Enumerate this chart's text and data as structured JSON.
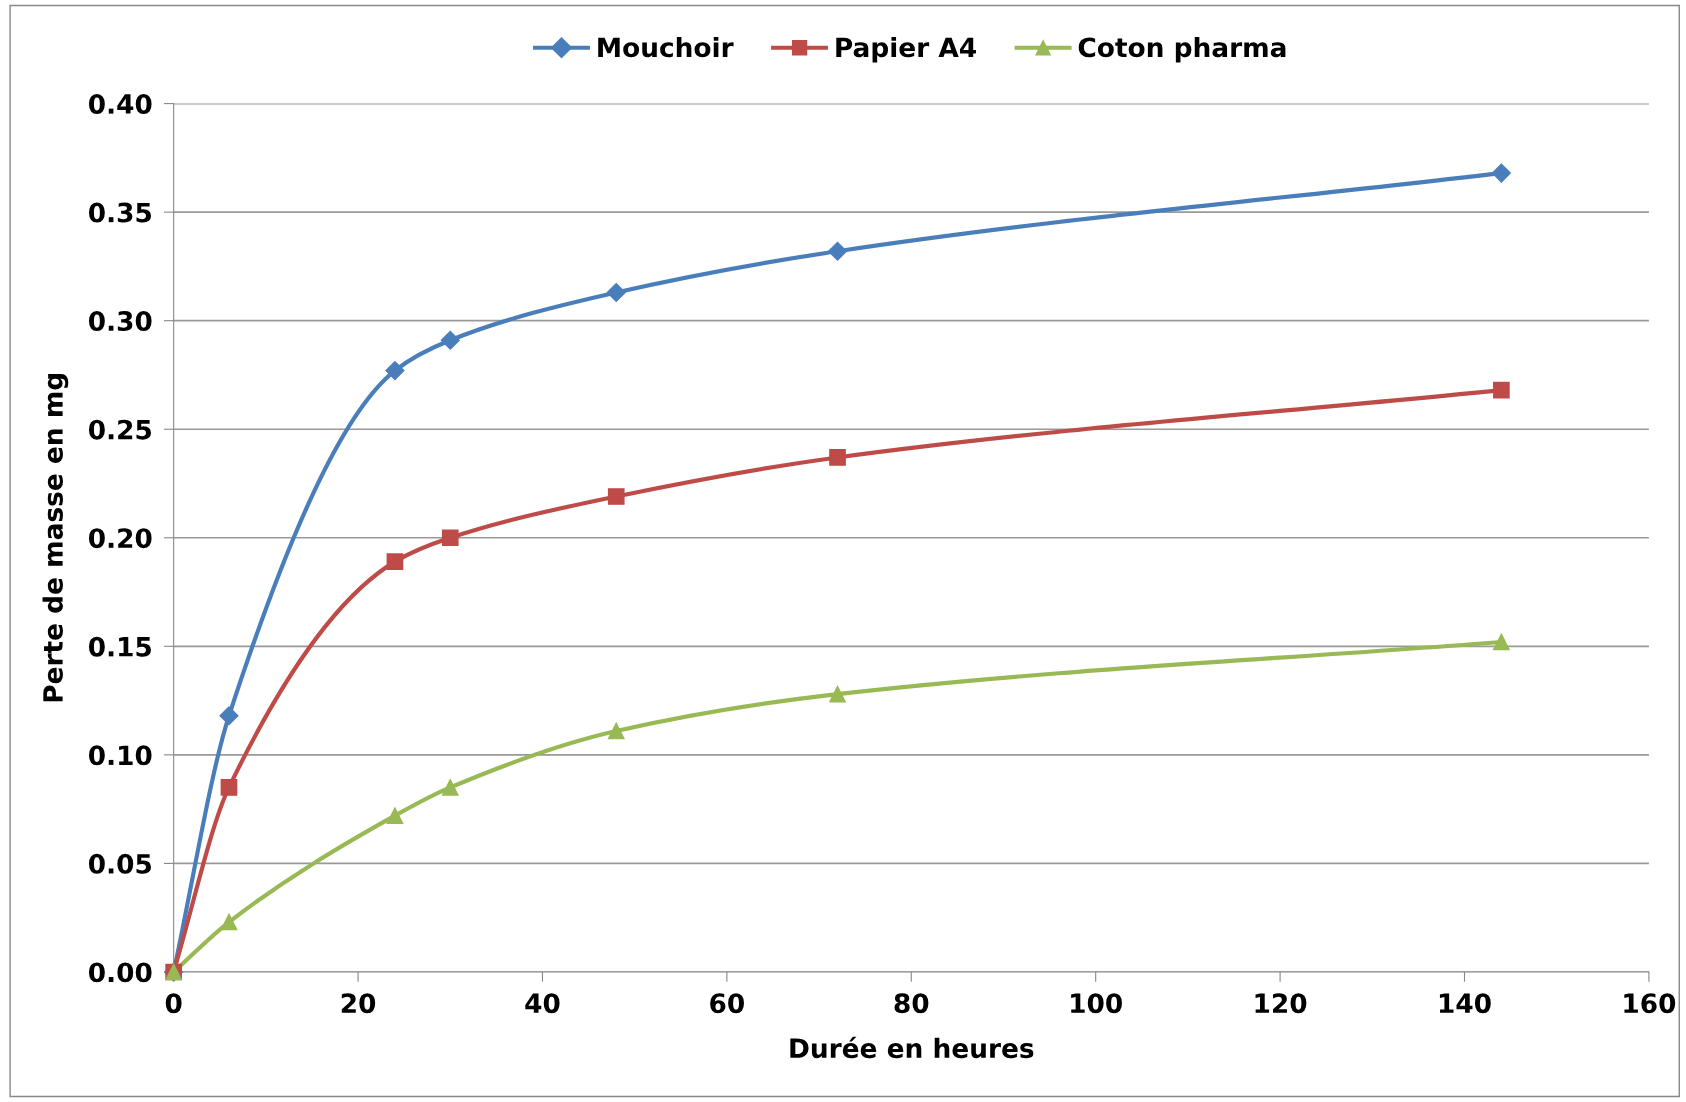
{
  "chart_data": {
    "type": "line",
    "xlabel": "Durée en heures",
    "ylabel": "Perte de masse en mg",
    "x": [
      0,
      6,
      24,
      30,
      48,
      72,
      144
    ],
    "series": [
      {
        "name": "Mouchoir",
        "color": "#4a7ebb",
        "marker": "diamond",
        "values": [
          0,
          0.118,
          0.277,
          0.291,
          0.313,
          0.332,
          0.368
        ]
      },
      {
        "name": "Papier A4",
        "color": "#be4b48",
        "marker": "square",
        "values": [
          0,
          0.085,
          0.189,
          0.2,
          0.219,
          0.237,
          0.268
        ]
      },
      {
        "name": "Coton pharma",
        "color": "#98b954",
        "marker": "triangle",
        "values": [
          0,
          0.023,
          0.072,
          0.085,
          0.111,
          0.128,
          0.152
        ]
      }
    ],
    "xlim": [
      0,
      160
    ],
    "xticks": [
      0,
      20,
      40,
      60,
      80,
      100,
      120,
      140,
      160
    ],
    "ylim": [
      0,
      0.4
    ],
    "yticks": [
      {
        "value": 0,
        "label": "0.00"
      },
      {
        "value": 0.05,
        "label": "0.05"
      },
      {
        "value": 0.1,
        "label": "0.10"
      },
      {
        "value": 0.15,
        "label": "0.15"
      },
      {
        "value": 0.2,
        "label": "0.20"
      },
      {
        "value": 0.25,
        "label": "0.25"
      },
      {
        "value": 0.3,
        "label": "0.30"
      },
      {
        "value": 0.35,
        "label": "0.35"
      },
      {
        "value": 0.4,
        "label": "0.40"
      }
    ],
    "grid": "y",
    "legend": "top",
    "line_style": "solid"
  }
}
